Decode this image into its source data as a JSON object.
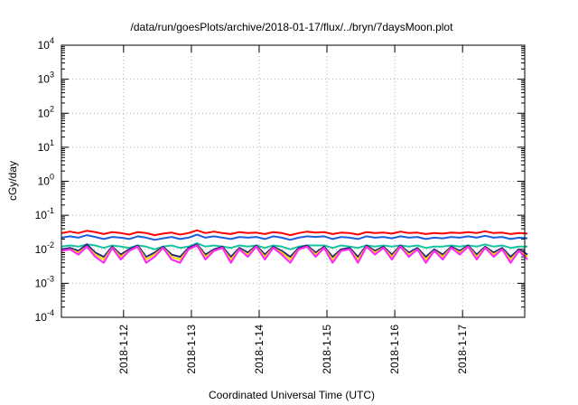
{
  "chart_data": {
    "type": "line",
    "title": "/data/run/goesPlots/archive/2018-01-17/flux/../bryn/7daysMoon.plot",
    "xlabel": "Coordinated Universal Time (UTC)",
    "ylabel": "cGy/day",
    "yscale": "log",
    "ylim": [
      0.0001,
      10000
    ],
    "xlim": [
      "2018-01-11 02:00",
      "2018-01-17 22:00"
    ],
    "xticks": [
      "2018-1-12",
      "2018-1-13",
      "2018-1-14",
      "2018-1-15",
      "2018-1-16",
      "2018-1-17"
    ],
    "yticks": [
      {
        "base": "10",
        "exp": "-4"
      },
      {
        "base": "10",
        "exp": "-3"
      },
      {
        "base": "10",
        "exp": "-2"
      },
      {
        "base": "10",
        "exp": "-1"
      },
      {
        "base": "10",
        "exp": "0"
      },
      {
        "base": "10",
        "exp": "1"
      },
      {
        "base": "10",
        "exp": "2"
      },
      {
        "base": "10",
        "exp": "3"
      },
      {
        "base": "10",
        "exp": "4"
      }
    ],
    "grid": true,
    "legend": "none",
    "x_hours": [
      0,
      3,
      6,
      9,
      12,
      15,
      18,
      21,
      24,
      27,
      30,
      33,
      36,
      39,
      42,
      45,
      48,
      51,
      54,
      57,
      60,
      63,
      66,
      69,
      72,
      75,
      78,
      81,
      84,
      87,
      90,
      93,
      96,
      99,
      102,
      105,
      108,
      111,
      114,
      117,
      120,
      123,
      126,
      129,
      132,
      135,
      138,
      141,
      144,
      147,
      150,
      153,
      156,
      159,
      162,
      165
    ],
    "series": [
      {
        "color": "#ff0000",
        "values": [
          0.03,
          0.033,
          0.03,
          0.035,
          0.032,
          0.028,
          0.032,
          0.03,
          0.027,
          0.032,
          0.03,
          0.026,
          0.029,
          0.031,
          0.027,
          0.03,
          0.036,
          0.03,
          0.033,
          0.03,
          0.028,
          0.032,
          0.03,
          0.031,
          0.028,
          0.032,
          0.03,
          0.026,
          0.03,
          0.033,
          0.031,
          0.032,
          0.028,
          0.031,
          0.03,
          0.027,
          0.032,
          0.03,
          0.031,
          0.029,
          0.033,
          0.03,
          0.031,
          0.028,
          0.03,
          0.029,
          0.031,
          0.03,
          0.032,
          0.03,
          0.034,
          0.03,
          0.031,
          0.028,
          0.03,
          0.029
        ]
      },
      {
        "color": "#1e5fd8",
        "values": [
          0.022,
          0.024,
          0.022,
          0.026,
          0.023,
          0.02,
          0.023,
          0.022,
          0.02,
          0.024,
          0.022,
          0.019,
          0.021,
          0.023,
          0.02,
          0.022,
          0.027,
          0.022,
          0.024,
          0.022,
          0.02,
          0.023,
          0.022,
          0.023,
          0.02,
          0.024,
          0.022,
          0.019,
          0.022,
          0.024,
          0.023,
          0.024,
          0.02,
          0.023,
          0.022,
          0.02,
          0.024,
          0.022,
          0.023,
          0.021,
          0.024,
          0.022,
          0.023,
          0.02,
          0.022,
          0.021,
          0.023,
          0.022,
          0.024,
          0.022,
          0.025,
          0.022,
          0.023,
          0.02,
          0.022,
          0.021
        ]
      },
      {
        "color": "#19c2a0",
        "values": [
          0.012,
          0.013,
          0.012,
          0.014,
          0.013,
          0.011,
          0.013,
          0.012,
          0.011,
          0.013,
          0.012,
          0.01,
          0.012,
          0.013,
          0.011,
          0.012,
          0.015,
          0.012,
          0.013,
          0.012,
          0.011,
          0.013,
          0.012,
          0.013,
          0.011,
          0.013,
          0.012,
          0.01,
          0.012,
          0.013,
          0.013,
          0.013,
          0.011,
          0.013,
          0.012,
          0.011,
          0.013,
          0.012,
          0.013,
          0.012,
          0.013,
          0.012,
          0.013,
          0.011,
          0.012,
          0.012,
          0.013,
          0.012,
          0.013,
          0.012,
          0.014,
          0.012,
          0.013,
          0.011,
          0.012,
          0.012
        ]
      },
      {
        "color": "#2a2a7a",
        "values": [
          0.01,
          0.011,
          0.009,
          0.014,
          0.008,
          0.006,
          0.012,
          0.007,
          0.01,
          0.013,
          0.006,
          0.008,
          0.012,
          0.007,
          0.006,
          0.011,
          0.014,
          0.007,
          0.01,
          0.012,
          0.006,
          0.011,
          0.008,
          0.013,
          0.007,
          0.012,
          0.009,
          0.006,
          0.011,
          0.013,
          0.008,
          0.012,
          0.006,
          0.01,
          0.011,
          0.006,
          0.013,
          0.009,
          0.012,
          0.007,
          0.013,
          0.008,
          0.011,
          0.006,
          0.01,
          0.007,
          0.012,
          0.009,
          0.013,
          0.007,
          0.012,
          0.008,
          0.011,
          0.006,
          0.01,
          0.007
        ]
      },
      {
        "color": "#ffd400",
        "values": [
          0.009,
          0.01,
          0.008,
          0.012,
          0.007,
          0.005,
          0.011,
          0.006,
          0.009,
          0.012,
          0.005,
          0.007,
          0.011,
          0.006,
          0.005,
          0.01,
          0.013,
          0.006,
          0.009,
          0.011,
          0.005,
          0.01,
          0.007,
          0.012,
          0.006,
          0.011,
          0.008,
          0.005,
          0.01,
          0.012,
          0.007,
          0.011,
          0.005,
          0.009,
          0.01,
          0.005,
          0.012,
          0.008,
          0.011,
          0.006,
          0.012,
          0.007,
          0.01,
          0.005,
          0.009,
          0.006,
          0.011,
          0.008,
          0.012,
          0.006,
          0.011,
          0.007,
          0.01,
          0.005,
          0.009,
          0.006
        ]
      },
      {
        "color": "#ff22ff",
        "values": [
          0.009,
          0.01,
          0.007,
          0.012,
          0.006,
          0.004,
          0.011,
          0.005,
          0.009,
          0.012,
          0.004,
          0.006,
          0.011,
          0.005,
          0.004,
          0.01,
          0.013,
          0.005,
          0.009,
          0.011,
          0.004,
          0.01,
          0.006,
          0.012,
          0.005,
          0.011,
          0.007,
          0.004,
          0.01,
          0.012,
          0.006,
          0.011,
          0.004,
          0.009,
          0.01,
          0.004,
          0.012,
          0.007,
          0.011,
          0.005,
          0.012,
          0.006,
          0.01,
          0.004,
          0.009,
          0.005,
          0.011,
          0.007,
          0.012,
          0.005,
          0.011,
          0.006,
          0.01,
          0.004,
          0.009,
          0.005
        ]
      }
    ]
  }
}
